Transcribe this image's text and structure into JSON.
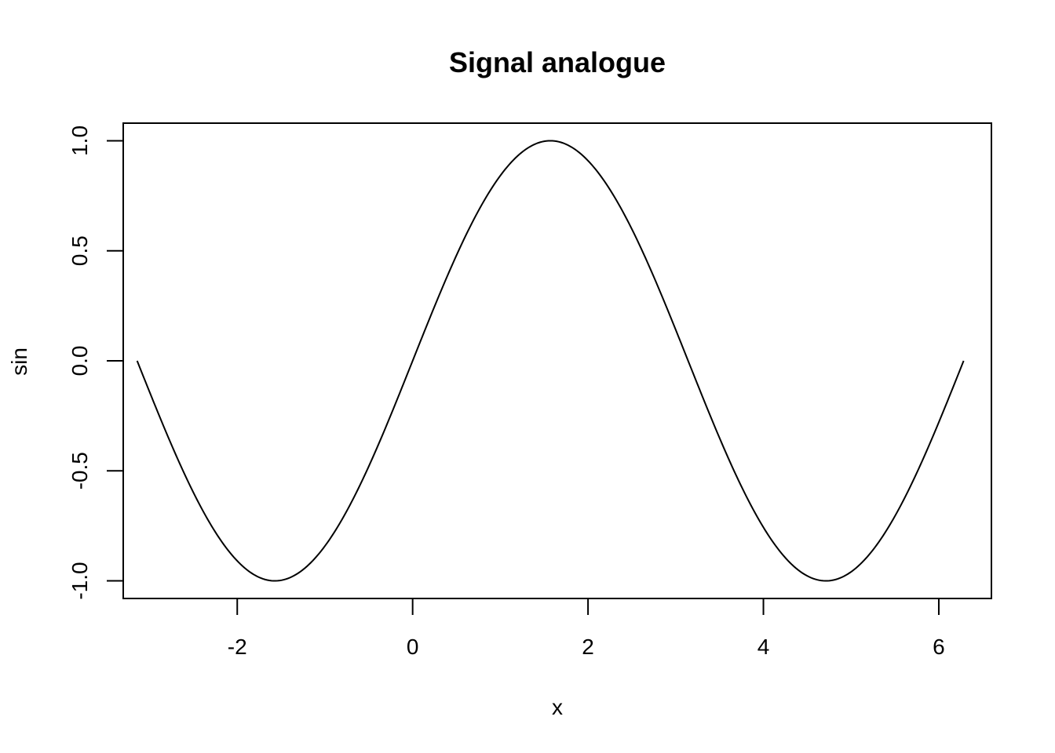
{
  "chart_data": {
    "type": "line",
    "title": "Signal analogue",
    "xlabel": "x",
    "ylabel": "sin",
    "xlim": [
      -3.3,
      6.6
    ],
    "ylim": [
      -1.08,
      1.08
    ],
    "xticks": [
      -2,
      0,
      2,
      4,
      6
    ],
    "xtick_labels": [
      "-2",
      "0",
      "2",
      "4",
      "6"
    ],
    "yticks": [
      -1.0,
      -0.5,
      0.0,
      0.5,
      1.0
    ],
    "ytick_labels": [
      "-1.0",
      "-0.5",
      "0.0",
      "0.5",
      "1.0"
    ],
    "grid": false,
    "legend": "none",
    "line_color": "#000000",
    "series": [
      {
        "function": "sin",
        "x_start": -3.14159,
        "x_end": 6.28319,
        "points": [
          [
            -3.1416,
            0.0
          ],
          [
            -2.7489,
            -0.3827
          ],
          [
            -2.3562,
            -0.7071
          ],
          [
            -1.9635,
            -0.9239
          ],
          [
            -1.5708,
            -1.0
          ],
          [
            -1.1781,
            -0.9239
          ],
          [
            -0.7854,
            -0.7071
          ],
          [
            -0.3927,
            -0.3827
          ],
          [
            0.0,
            0.0
          ],
          [
            0.3927,
            0.3827
          ],
          [
            0.7854,
            0.7071
          ],
          [
            1.1781,
            0.9239
          ],
          [
            1.5708,
            1.0
          ],
          [
            1.9635,
            0.9239
          ],
          [
            2.3562,
            0.7071
          ],
          [
            2.7489,
            0.3827
          ],
          [
            3.1416,
            0.0
          ],
          [
            3.5343,
            -0.3827
          ],
          [
            3.927,
            -0.7071
          ],
          [
            4.3197,
            -0.9239
          ],
          [
            4.7124,
            -1.0
          ],
          [
            5.1051,
            -0.9239
          ],
          [
            5.4978,
            -0.7071
          ],
          [
            5.8905,
            -0.3827
          ],
          [
            6.2832,
            0.0
          ]
        ]
      }
    ]
  }
}
